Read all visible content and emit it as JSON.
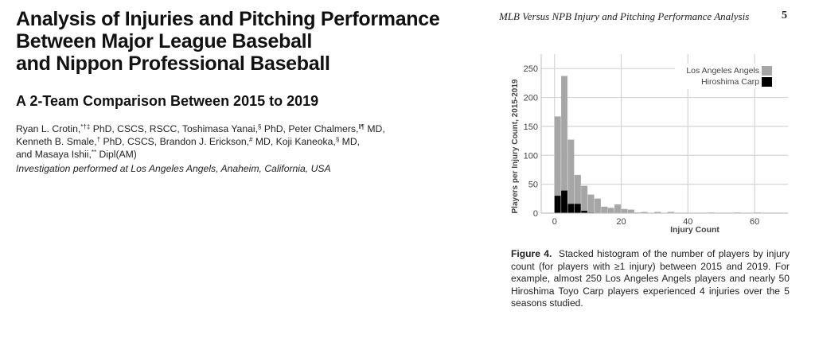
{
  "article": {
    "title_lines": [
      "Analysis of Injuries and Pitching Performance",
      "Between Major League Baseball",
      "and Nippon Professional Baseball"
    ],
    "subtitle": "A 2-Team Comparison Between 2015 to 2019",
    "authors": [
      {
        "name": "Ryan L. Crotin,",
        "marks": "*†‡",
        "credentials": " PhD, CSCS, RSCC, "
      },
      {
        "name": "Toshimasa Yanai,",
        "marks": "§",
        "credentials": " PhD, "
      },
      {
        "name": "Peter Chalmers,",
        "marks": "‖¶",
        "credentials": " MD,"
      },
      {
        "name": "Kenneth B. Smale,",
        "marks": "†",
        "credentials": " PhD, CSCS, "
      },
      {
        "name": "Brandon J. Erickson,",
        "marks": "#",
        "credentials": " MD, "
      },
      {
        "name": "Koji Kaneoka,",
        "marks": "§",
        "credentials": " MD,"
      },
      {
        "name": "and Masaya Ishii,",
        "marks": "**",
        "credentials": " Dipl(AM)"
      }
    ],
    "institution": "Investigation performed at Los Angeles Angels, Anaheim, California, USA"
  },
  "running_head": {
    "text": "MLB Versus NPB Injury and Pitching Performance Analysis",
    "page_number": "5"
  },
  "caption": {
    "label": "Figure 4.",
    "text": "Stacked histogram of the number of players by injury count (for players with ≥1 injury) between 2015 and 2019. For example, almost 250 Los Angeles Angels players and nearly 50 Hiroshima Toyo Carp players experienced 4 injuries over the 5 seasons studied."
  },
  "chart_data": {
    "type": "bar",
    "stacked": true,
    "title": "",
    "xlabel": "Injury Count",
    "ylabel": "Players per Injury Count, 2015-2019",
    "bin_width": 2,
    "bin_starts": [
      0,
      2,
      4,
      6,
      8,
      10,
      12,
      14,
      16,
      18,
      20,
      22,
      24,
      26,
      28,
      30,
      32,
      34,
      36,
      38,
      40,
      42,
      44,
      46,
      48,
      50,
      52,
      54,
      56,
      58,
      60,
      62
    ],
    "series": [
      {
        "name": "Los Angeles Angels",
        "color": "#a6a6a6",
        "totals": [
          167,
          237,
          127,
          66,
          47,
          32,
          25,
          11,
          9,
          15,
          7,
          6,
          1,
          2,
          0,
          2,
          0,
          2,
          0,
          0,
          0,
          0,
          0,
          1,
          0,
          0,
          0,
          1,
          0,
          0,
          1,
          0
        ]
      },
      {
        "name": "Hiroshima Carp",
        "color": "#000000",
        "values": [
          30,
          39,
          16,
          16,
          4,
          1,
          0,
          0,
          0,
          0,
          0,
          0,
          0,
          0,
          0,
          0,
          0,
          0,
          0,
          0,
          0,
          0,
          0,
          0,
          0,
          0,
          0,
          0,
          0,
          0,
          0,
          0
        ]
      }
    ],
    "xlim": [
      -4,
      70
    ],
    "ylim": [
      0,
      275
    ],
    "xticks": [
      0,
      20,
      40,
      60
    ],
    "yticks": [
      0,
      50,
      100,
      150,
      200,
      250
    ],
    "grid": true,
    "legend": "top-right"
  }
}
